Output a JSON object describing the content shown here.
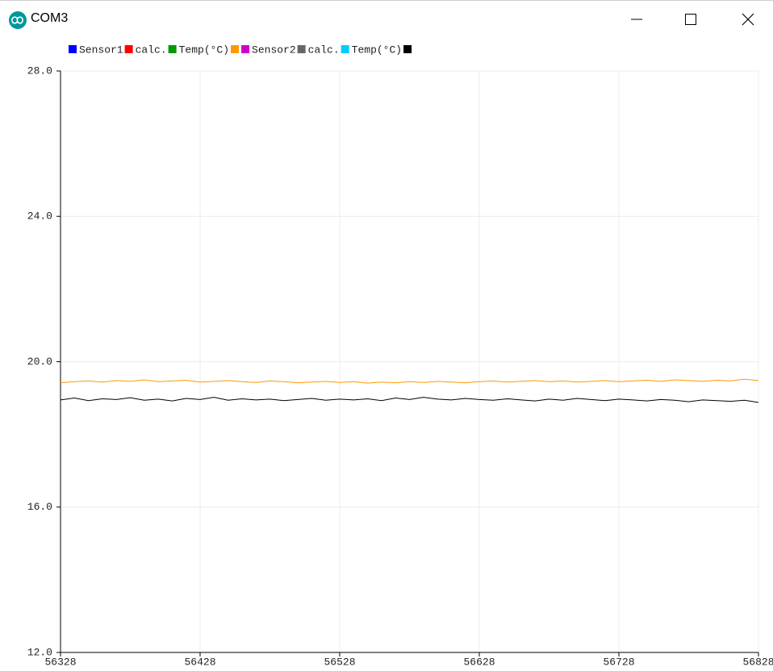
{
  "window": {
    "title": "COM3"
  },
  "chart_data": {
    "type": "line",
    "x": [
      56328,
      56338,
      56348,
      56358,
      56368,
      56378,
      56388,
      56398,
      56408,
      56418,
      56428,
      56438,
      56448,
      56458,
      56468,
      56478,
      56488,
      56498,
      56508,
      56518,
      56528,
      56538,
      56548,
      56558,
      56568,
      56578,
      56588,
      56598,
      56608,
      56618,
      56628,
      56638,
      56648,
      56658,
      56668,
      56678,
      56688,
      56698,
      56708,
      56718,
      56728,
      56738,
      56748,
      56758,
      56768,
      56778,
      56788,
      56798,
      56808,
      56818,
      56828
    ],
    "series": [
      {
        "name": "Sensor1",
        "color": "#0000ff"
      },
      {
        "name": "calc.",
        "color": "#ff0000"
      },
      {
        "name": "Temp(°C)",
        "color": "#009900"
      },
      {
        "color": "#ff9900",
        "values": [
          19.42,
          19.45,
          19.47,
          19.44,
          19.48,
          19.46,
          19.5,
          19.45,
          19.47,
          19.49,
          19.44,
          19.46,
          19.48,
          19.45,
          19.43,
          19.47,
          19.45,
          19.42,
          19.44,
          19.46,
          19.43,
          19.45,
          19.41,
          19.44,
          19.42,
          19.45,
          19.43,
          19.46,
          19.44,
          19.42,
          19.45,
          19.47,
          19.44,
          19.46,
          19.48,
          19.45,
          19.47,
          19.44,
          19.46,
          19.48,
          19.45,
          19.47,
          19.49,
          19.46,
          19.5,
          19.48,
          19.46,
          19.49,
          19.47,
          19.52,
          19.48
        ]
      },
      {
        "name": "Sensor2",
        "color": "#cc00cc"
      },
      {
        "name": "calc.",
        "color": "#666666"
      },
      {
        "name": "Temp(°C)",
        "color": "#00ccff"
      },
      {
        "color": "#000000",
        "values": [
          18.95,
          19.0,
          18.93,
          18.98,
          18.96,
          19.01,
          18.94,
          18.97,
          18.92,
          18.99,
          18.96,
          19.02,
          18.94,
          18.98,
          18.95,
          18.97,
          18.93,
          18.96,
          18.99,
          18.94,
          18.97,
          18.95,
          18.98,
          18.93,
          19.0,
          18.96,
          19.02,
          18.97,
          18.95,
          18.99,
          18.96,
          18.94,
          18.98,
          18.95,
          18.92,
          18.97,
          18.94,
          18.99,
          18.96,
          18.93,
          18.97,
          18.95,
          18.92,
          18.96,
          18.94,
          18.9,
          18.95,
          18.93,
          18.91,
          18.94,
          18.88
        ]
      }
    ],
    "xlim": [
      56328,
      56828
    ],
    "xticks": [
      56328,
      56428,
      56528,
      56628,
      56728,
      56828
    ],
    "ylim": [
      12,
      28
    ],
    "yticks": [
      {
        "value": 12,
        "label": "12.0"
      },
      {
        "value": 16,
        "label": "16.0"
      },
      {
        "value": 20,
        "label": "20.0"
      },
      {
        "value": 24,
        "label": "24.0"
      },
      {
        "value": 28,
        "label": "28.0"
      }
    ],
    "grid": true
  }
}
